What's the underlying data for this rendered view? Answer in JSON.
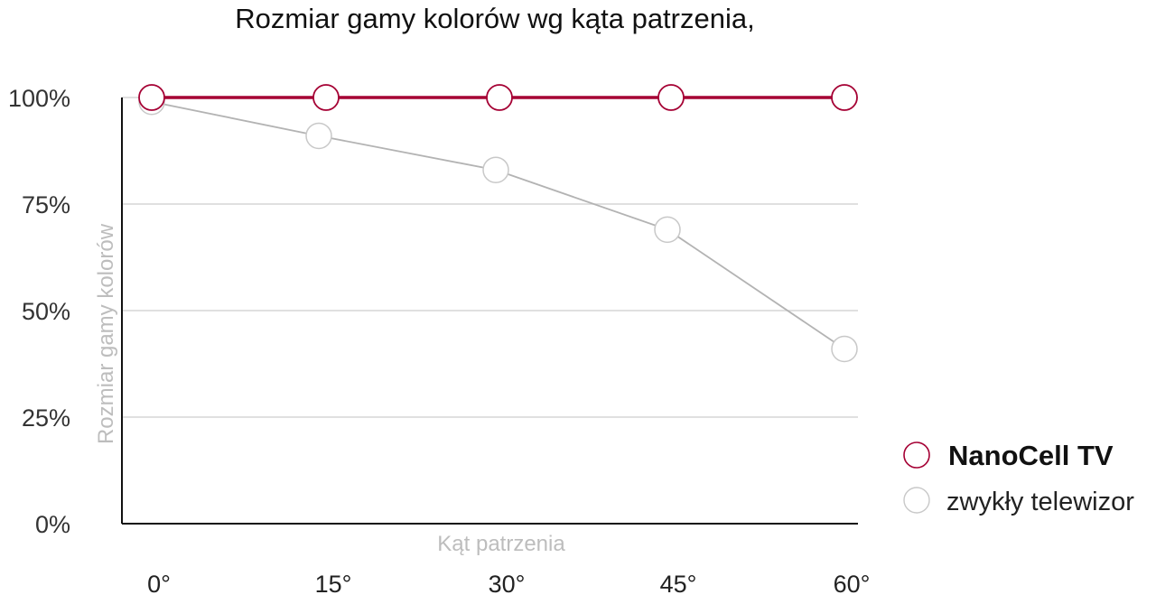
{
  "chart_data": {
    "type": "line",
    "title": "Rozmiar gamy kolorów wg kąta patrzenia,",
    "xlabel": "Kąt patrzenia",
    "ylabel": "Rozmiar gamy kolorów",
    "x": [
      0,
      15,
      30,
      45,
      60
    ],
    "x_tick_labels": [
      "0°",
      "15°",
      "30°",
      "45°",
      "60°"
    ],
    "ylim": [
      0,
      100
    ],
    "y_ticks": [
      0,
      25,
      50,
      75,
      100
    ],
    "y_tick_labels": [
      "0%",
      "25%",
      "50%",
      "75%",
      "100%"
    ],
    "grid": true,
    "legend_position": "right",
    "series": [
      {
        "name": "NanoCell TV",
        "values": [
          100,
          100,
          100,
          100,
          100
        ],
        "color": "#a50034"
      },
      {
        "name": "zwykły telewizor",
        "values": [
          99,
          91,
          83,
          69,
          41
        ],
        "color": "#b3b3b3"
      }
    ]
  }
}
